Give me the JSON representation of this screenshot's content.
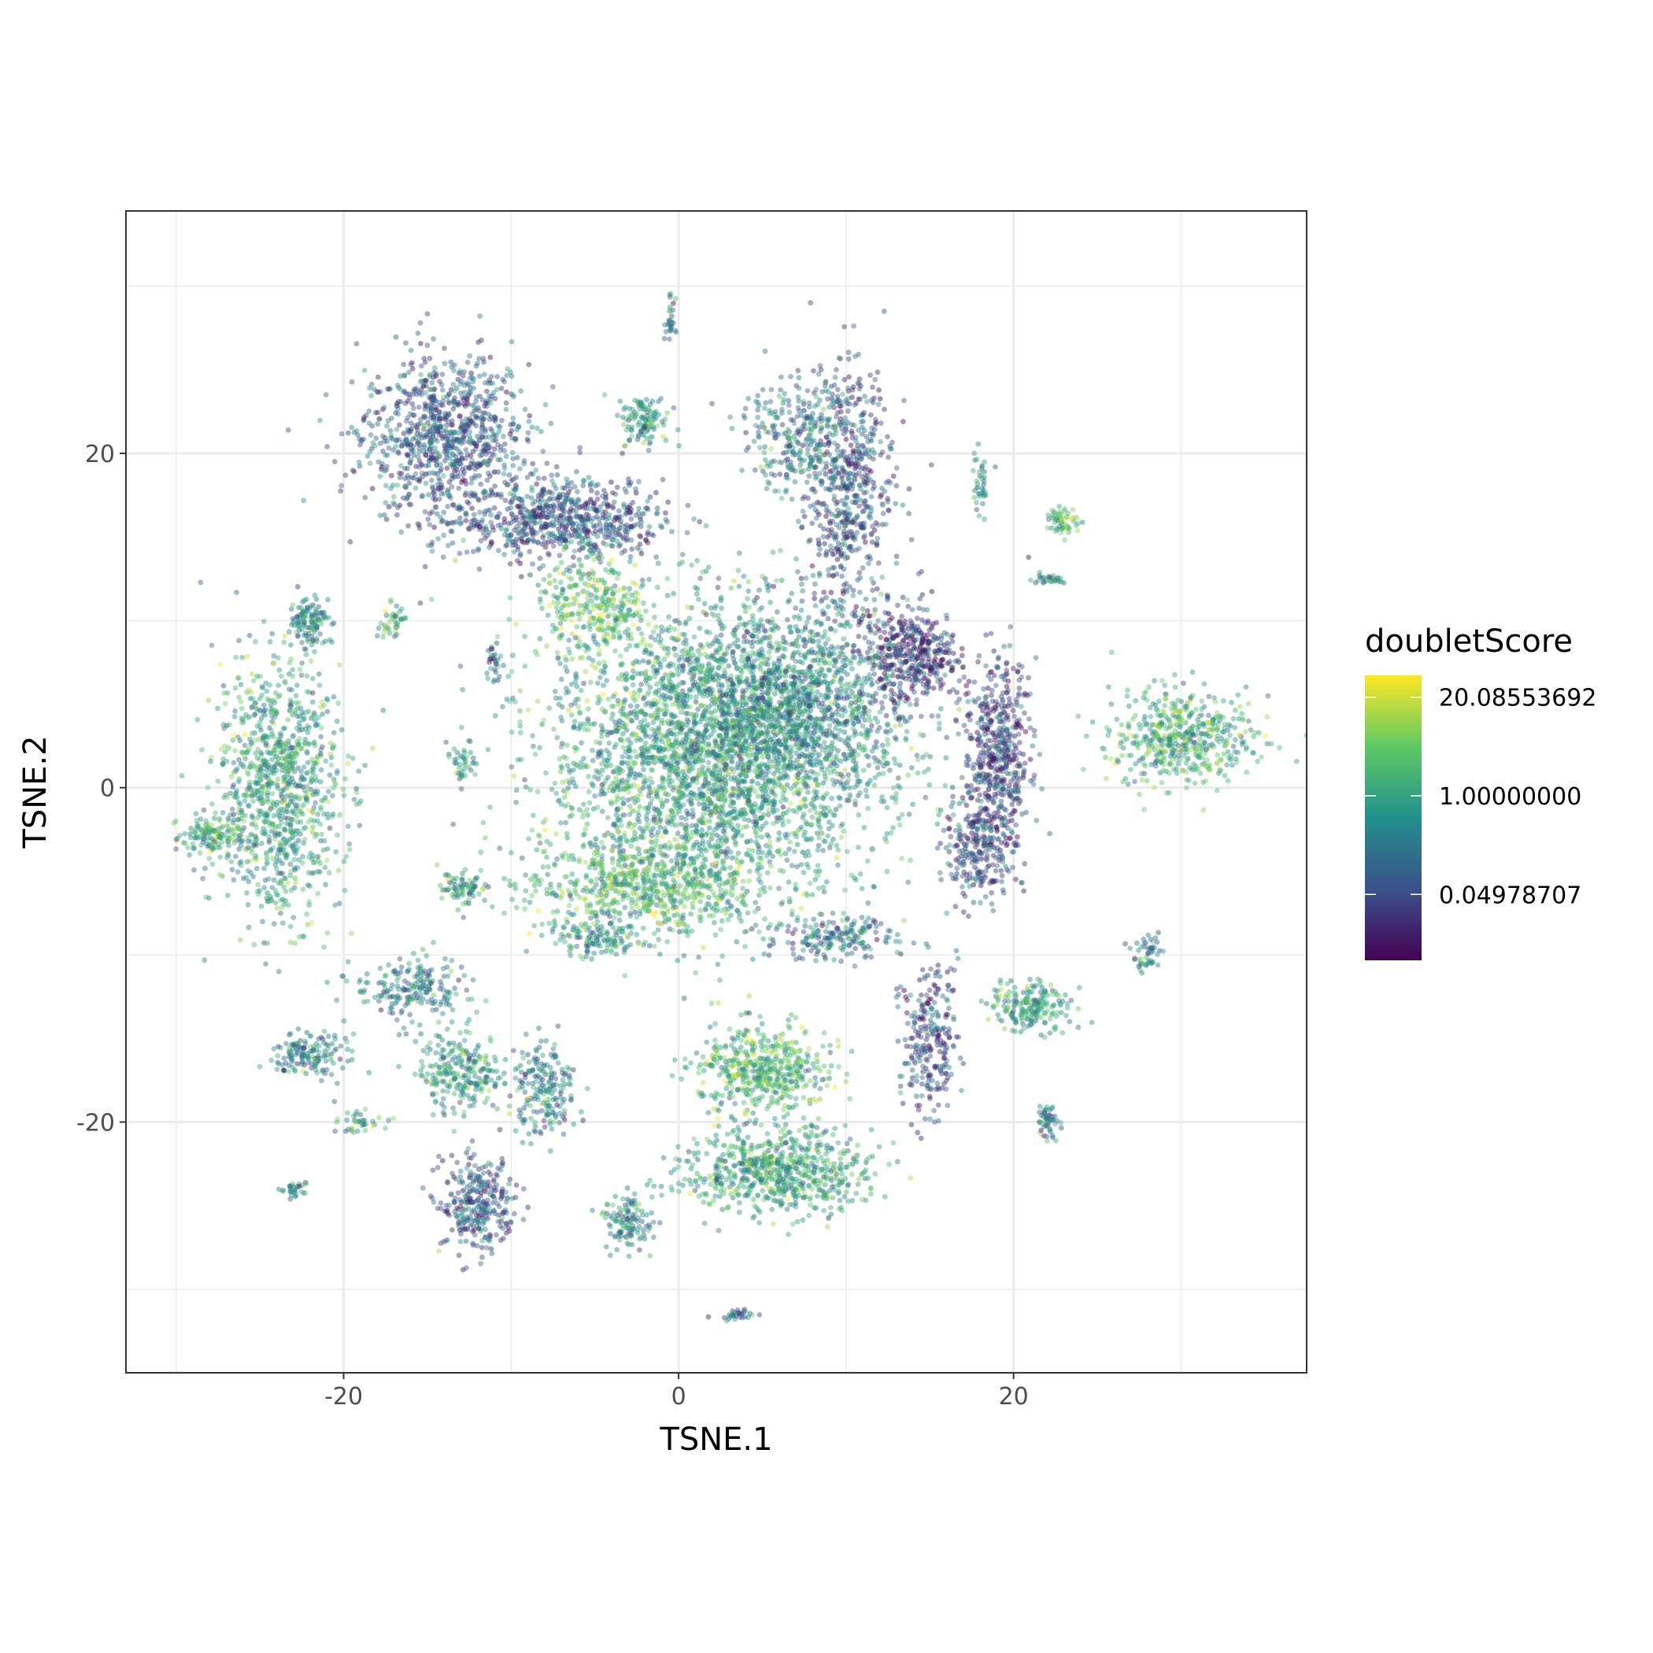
{
  "chart_data": {
    "type": "scatter",
    "title": "",
    "xlabel": "TSNE.1",
    "ylabel": "TSNE.2",
    "xlim": [
      -33,
      37.5
    ],
    "ylim": [
      -35,
      34.5
    ],
    "x_ticks": [
      -20,
      0,
      20
    ],
    "x_tick_labels": [
      "-20",
      "0",
      "20"
    ],
    "y_ticks": [
      -20,
      0,
      20
    ],
    "y_tick_labels": [
      "-20",
      "0",
      "20"
    ],
    "grid": true,
    "legend": {
      "title": "doubletScore",
      "position": "right",
      "scale": "log",
      "range": [
        0.0067,
        39.0
      ],
      "breaks": [
        20.08553692,
        1.0,
        0.04978707
      ],
      "break_labels": [
        "20.08553692",
        "1.00000000",
        "0.04978707"
      ],
      "colormap": [
        "#440154",
        "#3b528b",
        "#21908c",
        "#5dc963",
        "#fde725"
      ]
    },
    "point_color_channel": "doubletScore",
    "point_opacity": 0.45,
    "clusters": [
      {
        "cx": -14,
        "cy": 21,
        "rx": 4.5,
        "ry": 4.5,
        "n": 900,
        "score": 0.08
      },
      {
        "cx": -7,
        "cy": 16,
        "rx": 5.5,
        "ry": 2.2,
        "n": 700,
        "score": 0.07
      },
      {
        "cx": -5,
        "cy": 11,
        "rx": 3,
        "ry": 2.5,
        "n": 300,
        "score": 3.0
      },
      {
        "cx": 2,
        "cy": 2,
        "rx": 9,
        "ry": 8,
        "n": 3200,
        "score": 0.9
      },
      {
        "cx": 7,
        "cy": 5,
        "rx": 6,
        "ry": 5,
        "n": 1000,
        "score": 0.3
      },
      {
        "cx": -2,
        "cy": -6,
        "rx": 6,
        "ry": 2.5,
        "n": 600,
        "score": 2.0
      },
      {
        "cx": 14,
        "cy": 8,
        "rx": 2.5,
        "ry": 2.5,
        "n": 400,
        "score": 0.03
      },
      {
        "cx": 19,
        "cy": 2,
        "rx": 1.8,
        "ry": 5,
        "n": 500,
        "score": 0.04
      },
      {
        "cx": 18,
        "cy": -3.5,
        "rx": 2,
        "ry": 2.8,
        "n": 250,
        "score": 0.06
      },
      {
        "cx": 10,
        "cy": 18,
        "rx": 2.6,
        "ry": 7,
        "n": 600,
        "score": 0.06
      },
      {
        "cx": 7,
        "cy": 21,
        "rx": 3,
        "ry": 3,
        "n": 250,
        "score": 0.3
      },
      {
        "cx": -24,
        "cy": 0,
        "rx": 3.5,
        "ry": 7,
        "n": 1000,
        "score": 1.0
      },
      {
        "cx": -28,
        "cy": -3,
        "rx": 1.5,
        "ry": 1.0,
        "n": 120,
        "score": 1.2
      },
      {
        "cx": -22,
        "cy": 10,
        "rx": 1.2,
        "ry": 1.3,
        "n": 120,
        "score": 0.5
      },
      {
        "cx": 30,
        "cy": 3,
        "rx": 3.8,
        "ry": 2.6,
        "n": 500,
        "score": 1.5
      },
      {
        "cx": 5,
        "cy": -17,
        "rx": 3.5,
        "ry": 2.5,
        "n": 500,
        "score": 2.0
      },
      {
        "cx": 6,
        "cy": -23,
        "rx": 5,
        "ry": 2.3,
        "n": 700,
        "score": 1.0
      },
      {
        "cx": -12,
        "cy": -25,
        "rx": 2,
        "ry": 2.5,
        "n": 300,
        "score": 0.08
      },
      {
        "cx": -13,
        "cy": -17,
        "rx": 2.2,
        "ry": 2.2,
        "n": 250,
        "score": 0.8
      },
      {
        "cx": -8,
        "cy": -18,
        "rx": 1.8,
        "ry": 2.5,
        "n": 200,
        "score": 0.3
      },
      {
        "cx": -22,
        "cy": -16,
        "rx": 2,
        "ry": 1.1,
        "n": 150,
        "score": 0.3
      },
      {
        "cx": -16,
        "cy": -12,
        "rx": 3,
        "ry": 1.8,
        "n": 200,
        "score": 0.3
      },
      {
        "cx": 15,
        "cy": -15,
        "rx": 1.5,
        "ry": 4,
        "n": 250,
        "score": 0.05
      },
      {
        "cx": 21,
        "cy": -13,
        "rx": 2.2,
        "ry": 1.4,
        "n": 200,
        "score": 0.8
      },
      {
        "cx": 9,
        "cy": -9,
        "rx": 3.5,
        "ry": 1.3,
        "n": 180,
        "score": 0.2
      },
      {
        "cx": -2,
        "cy": 22,
        "rx": 1.3,
        "ry": 1.3,
        "n": 120,
        "score": 0.7
      },
      {
        "cx": -3,
        "cy": -26,
        "rx": 1.3,
        "ry": 1.5,
        "n": 120,
        "score": 0.4
      },
      {
        "cx": -13,
        "cy": -6,
        "rx": 1.5,
        "ry": 0.8,
        "n": 80,
        "score": 0.6
      },
      {
        "cx": -5,
        "cy": -9,
        "rx": 2.5,
        "ry": 1.0,
        "n": 120,
        "score": 0.5
      },
      {
        "cx": 23,
        "cy": 16,
        "rx": 0.9,
        "ry": 0.7,
        "n": 60,
        "score": 3.0
      },
      {
        "cx": 28,
        "cy": -10,
        "rx": 0.8,
        "ry": 1.0,
        "n": 50,
        "score": 0.3
      },
      {
        "cx": 22,
        "cy": -20,
        "rx": 0.6,
        "ry": 1.1,
        "n": 50,
        "score": 0.3
      },
      {
        "cx": 3.5,
        "cy": -31.5,
        "rx": 1.0,
        "ry": 0.3,
        "n": 30,
        "score": 0.2
      },
      {
        "cx": -13,
        "cy": 1.5,
        "rx": 0.8,
        "ry": 1.0,
        "n": 40,
        "score": 0.4
      },
      {
        "cx": -17,
        "cy": 10,
        "rx": 0.7,
        "ry": 1.3,
        "n": 40,
        "score": 2.0
      },
      {
        "cx": -11,
        "cy": 7.5,
        "rx": 0.4,
        "ry": 1.3,
        "n": 30,
        "score": 0.1
      },
      {
        "cx": 18,
        "cy": 18,
        "rx": 0.5,
        "ry": 1.8,
        "n": 40,
        "score": 0.4
      },
      {
        "cx": 22,
        "cy": 12.5,
        "rx": 1.2,
        "ry": 0.3,
        "n": 30,
        "score": 0.5
      },
      {
        "cx": -23,
        "cy": -24,
        "rx": 1.0,
        "ry": 0.4,
        "n": 30,
        "score": 0.4
      },
      {
        "cx": -19,
        "cy": -20,
        "rx": 1.2,
        "ry": 0.7,
        "n": 40,
        "score": 0.8
      },
      {
        "cx": -0.5,
        "cy": 28,
        "rx": 0.3,
        "ry": 1.2,
        "n": 30,
        "score": 0.3
      }
    ]
  }
}
